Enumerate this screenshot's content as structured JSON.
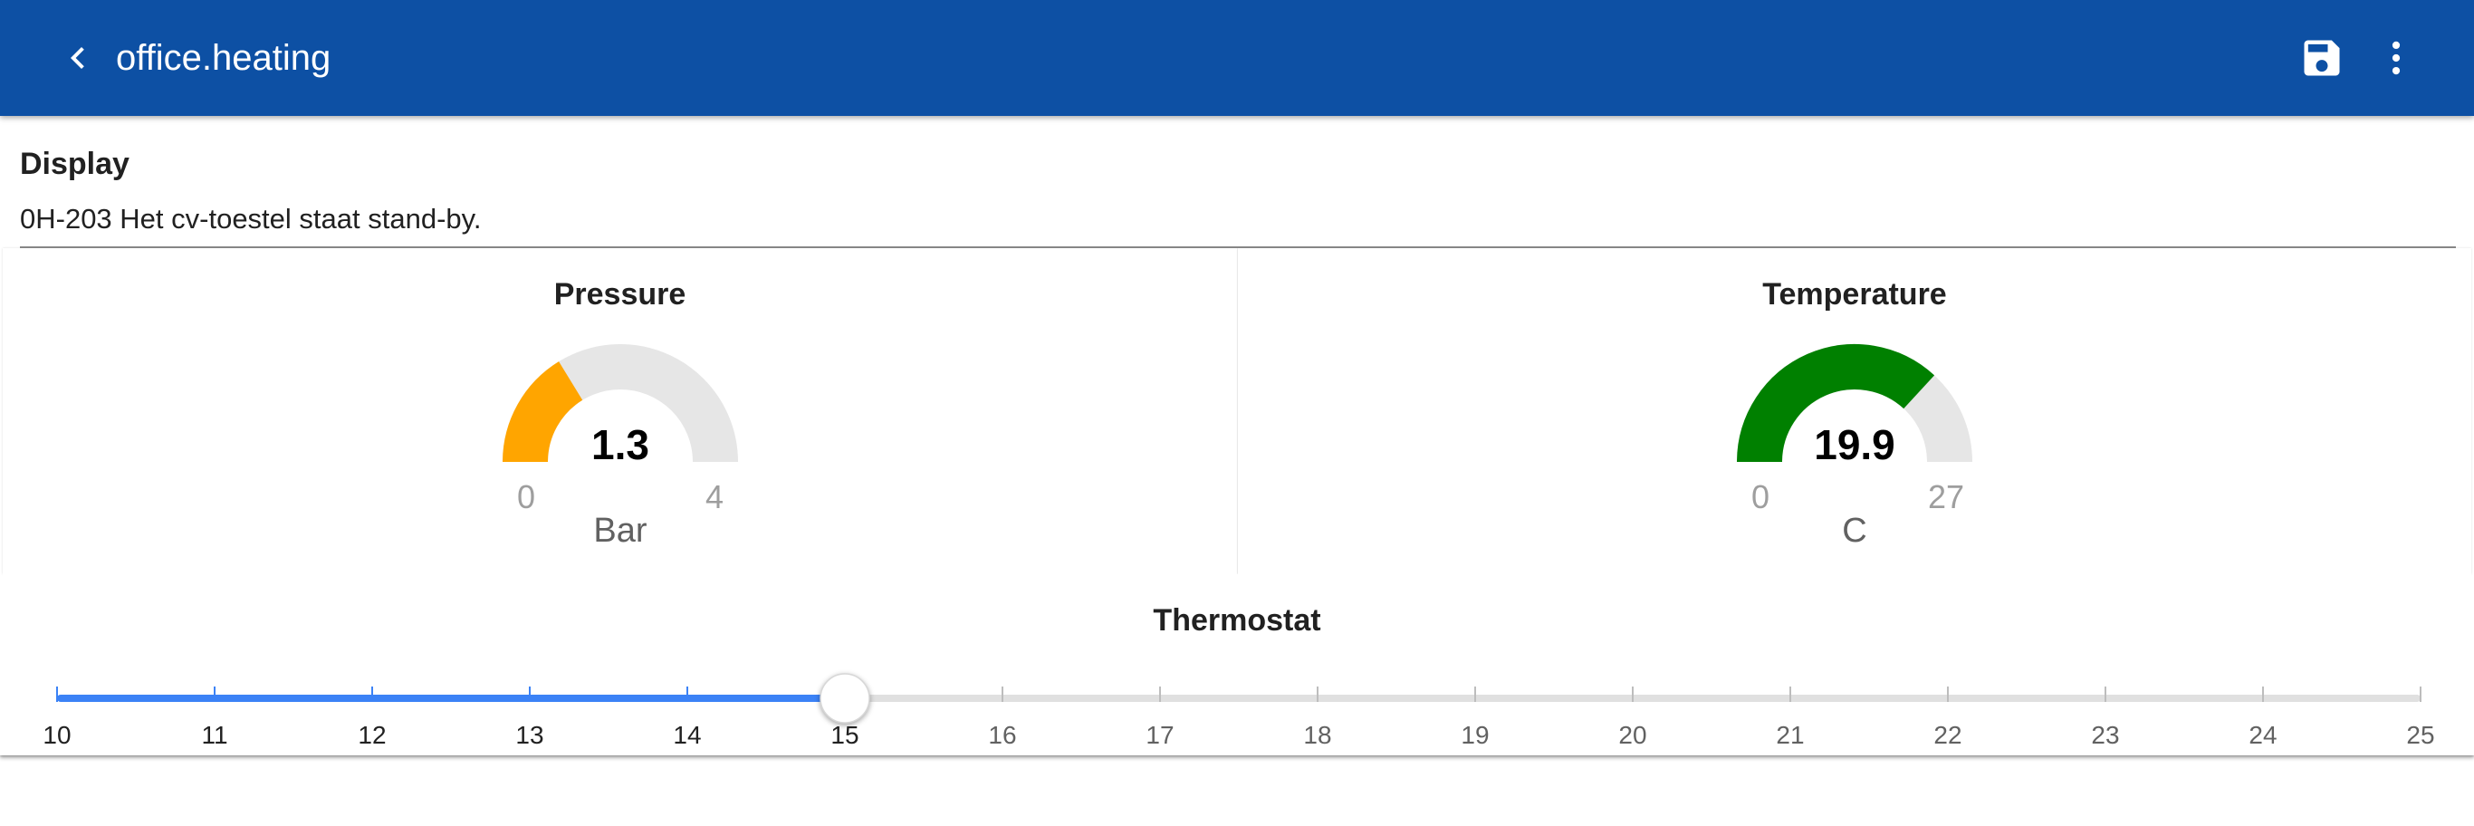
{
  "header": {
    "title": "office.heating",
    "back_icon": "chevron-left-icon",
    "save_icon": "floppy-disk-icon",
    "more_icon": "dots-vertical-icon",
    "background_color": "#0d50a4"
  },
  "display": {
    "title": "Display",
    "text": "0H-203 Het cv-toestel staat stand-by."
  },
  "pressure": {
    "title": "Pressure",
    "value": "1.3",
    "numeric_value": 1.3,
    "min": "0",
    "max": "4",
    "unit": "Bar",
    "color": "#ffa500"
  },
  "temperature": {
    "title": "Temperature",
    "value": "19.9",
    "numeric_value": 19.9,
    "min": "0",
    "max": "27",
    "unit": "C",
    "color": "#008000"
  },
  "thermostat": {
    "title": "Thermostat",
    "min": 10,
    "max": 25,
    "value": 15,
    "tick_labels": [
      "10",
      "11",
      "12",
      "13",
      "14",
      "15",
      "16",
      "17",
      "18",
      "19",
      "20",
      "21",
      "22",
      "23",
      "24",
      "25"
    ],
    "active_color": "#3b82f6",
    "track_color": "#e0e0e0"
  }
}
